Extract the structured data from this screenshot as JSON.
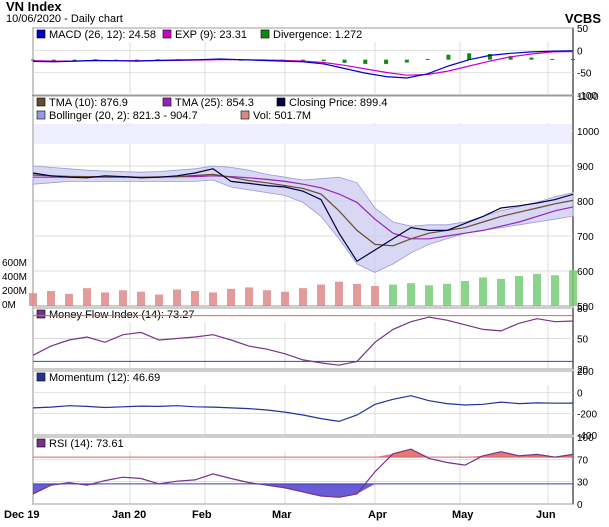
{
  "header": {
    "title": "VN Index",
    "subtitle": "10/06/2020 - Daily chart",
    "source": "VCBS"
  },
  "x_labels": [
    "Dec 19",
    "Jan 20",
    "Feb",
    "Mar",
    "Apr",
    "May",
    "Jun"
  ],
  "colors": {
    "panel_bg": "#ffffff",
    "grid": "#d0d0d0",
    "upper": "#eeeeff",
    "band": "#c8c8f0",
    "macd": "#0000cc",
    "exp": "#cc00cc",
    "div": "#118811",
    "tma10": "#6b4a2e",
    "tma25": "#9922bb",
    "close": "#000040",
    "volume": "#dd8888",
    "volume_up": "#77cc77",
    "mfi": "#773388",
    "mom": "#223399",
    "rsi": "#773388",
    "ref_red": "#e06060",
    "ref_blue": "#3344bb"
  },
  "chart_data": [
    {
      "type": "line",
      "panel": "macd",
      "legend": [
        {
          "text": "MACD (26, 12): 24.58",
          "color": "#0000cc"
        },
        {
          "text": "EXP (9): 23.31",
          "color": "#cc00cc"
        },
        {
          "text": "Divergence: 1.272",
          "color": "#118811"
        }
      ],
      "yticks": [
        "50",
        "0",
        "-50",
        "-100"
      ],
      "ylim": [
        -100,
        50
      ],
      "series": [
        {
          "key": "macd",
          "values": [
            -5,
            -6,
            -4,
            -2,
            -3,
            -4,
            -2,
            -1,
            0,
            2,
            0,
            -2,
            -4,
            -6,
            -12,
            -25,
            -38,
            -48,
            -52,
            -40,
            -18,
            0,
            12,
            18,
            22,
            24,
            25
          ]
        },
        {
          "key": "exp",
          "values": [
            -3,
            -4,
            -4,
            -3,
            -3,
            -3,
            -3,
            -2,
            -1,
            0,
            0,
            -1,
            -2,
            -4,
            -8,
            -16,
            -26,
            -36,
            -44,
            -42,
            -32,
            -18,
            -4,
            8,
            16,
            22,
            23
          ]
        }
      ]
    },
    {
      "type": "line",
      "panel": "price",
      "legend": [
        {
          "text": "TMA (10): 876.9",
          "color": "#6b4a2e"
        },
        {
          "text": "TMA (25): 854.3",
          "color": "#9922bb"
        },
        {
          "text": "Closing Price: 899.4",
          "color": "#000040"
        },
        {
          "text": "Bollinger (20, 2): 821.3 - 904.7",
          "color": "#9999dd"
        },
        {
          "text": "Vol: 501.7M",
          "color": "#dd8888"
        }
      ],
      "yticks": [
        "1100",
        "1000",
        "900",
        "800",
        "700",
        "600",
        "500"
      ],
      "vol_ticks": [
        "600M",
        "400M",
        "200M",
        "0M"
      ],
      "ylim": [
        500,
        1150
      ],
      "series": [
        {
          "key": "close",
          "values": [
            975,
            965,
            960,
            958,
            965,
            962,
            958,
            960,
            965,
            975,
            990,
            945,
            938,
            930,
            925,
            910,
            880,
            760,
            660,
            700,
            740,
            780,
            770,
            770,
            795,
            820,
            850,
            858,
            868,
            880,
            899
          ]
        },
        {
          "key": "tma10",
          "values": [
            968,
            965,
            963,
            962,
            962,
            962,
            960,
            961,
            962,
            966,
            970,
            960,
            948,
            940,
            930,
            920,
            900,
            840,
            770,
            720,
            715,
            740,
            760,
            770,
            780,
            800,
            820,
            835,
            850,
            865,
            877
          ]
        },
        {
          "key": "tma25",
          "values": [
            960,
            960,
            960,
            960,
            960,
            960,
            960,
            960,
            962,
            962,
            965,
            962,
            958,
            952,
            945,
            935,
            922,
            900,
            870,
            810,
            760,
            740,
            740,
            750,
            760,
            770,
            785,
            800,
            820,
            840,
            854
          ]
        },
        {
          "key": "bb_up",
          "values": [
            1000,
            995,
            990,
            985,
            982,
            980,
            978,
            980,
            985,
            990,
            1000,
            995,
            985,
            970,
            960,
            950,
            955,
            960,
            940,
            850,
            800,
            785,
            790,
            790,
            800,
            820,
            840,
            855,
            870,
            890,
            905
          ]
        },
        {
          "key": "bb_lo",
          "values": [
            935,
            940,
            945,
            945,
            945,
            945,
            945,
            945,
            945,
            945,
            950,
            925,
            915,
            905,
            895,
            870,
            820,
            740,
            650,
            620,
            650,
            690,
            720,
            740,
            760,
            770,
            780,
            790,
            800,
            810,
            821
          ]
        }
      ],
      "volume": [
        180,
        210,
        170,
        250,
        190,
        220,
        200,
        160,
        230,
        210,
        190,
        240,
        260,
        220,
        200,
        250,
        300,
        340,
        310,
        280,
        300,
        320,
        290,
        310,
        350,
        400,
        380,
        420,
        450,
        430,
        500
      ]
    },
    {
      "type": "line",
      "panel": "mfi",
      "legend": [
        {
          "text": "Money Flow Index (14): 73.27",
          "color": "#773388"
        }
      ],
      "yticks": [
        "80",
        "50",
        "20"
      ],
      "ylim": [
        10,
        90
      ],
      "series": [
        {
          "key": "mfi",
          "values": [
            28,
            40,
            48,
            52,
            45,
            55,
            58,
            48,
            50,
            52,
            55,
            48,
            40,
            36,
            30,
            22,
            18,
            15,
            20,
            45,
            62,
            72,
            78,
            74,
            68,
            62,
            60,
            70,
            76,
            72,
            73
          ]
        }
      ]
    },
    {
      "type": "line",
      "panel": "momentum",
      "legend": [
        {
          "text": "Momentum (12): 46.69",
          "color": "#223399"
        }
      ],
      "yticks": [
        "200",
        "0",
        "-200",
        "-400"
      ],
      "ylim": [
        -400,
        300
      ],
      "series": [
        {
          "key": "mom",
          "values": [
            -20,
            -10,
            10,
            0,
            -15,
            -5,
            5,
            0,
            10,
            -5,
            -10,
            -20,
            -30,
            -50,
            -80,
            -120,
            -170,
            -210,
            -120,
            30,
            100,
            150,
            80,
            40,
            20,
            30,
            60,
            40,
            50,
            45,
            47
          ]
        }
      ]
    },
    {
      "type": "line",
      "panel": "rsi",
      "legend": [
        {
          "text": "RSI (14): 73.61",
          "color": "#773388"
        }
      ],
      "yticks": [
        "100",
        "70",
        "30",
        "0"
      ],
      "ylim": [
        0,
        100
      ],
      "series": [
        {
          "key": "rsi",
          "values": [
            15,
            28,
            32,
            28,
            35,
            40,
            38,
            30,
            34,
            36,
            45,
            38,
            32,
            28,
            24,
            18,
            12,
            10,
            15,
            48,
            75,
            82,
            68,
            62,
            58,
            72,
            78,
            72,
            74,
            70,
            74
          ]
        }
      ]
    }
  ]
}
